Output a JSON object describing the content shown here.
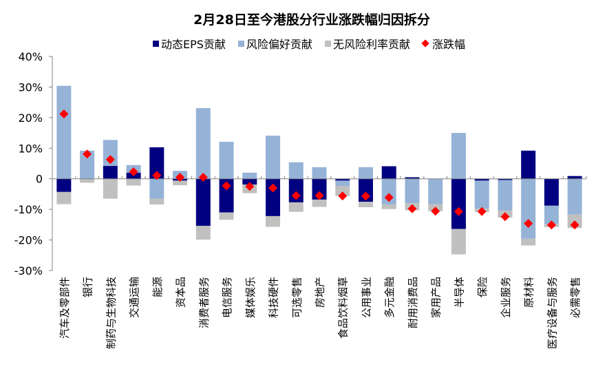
{
  "chart_data": {
    "type": "bar",
    "stacked": true,
    "title": "2月28日至今港股分行业涨跌幅归因拆分",
    "xlabel": "",
    "ylabel": "",
    "ylim": [
      -30,
      40
    ],
    "yticks": [
      "40%",
      "30%",
      "20%",
      "10%",
      "0",
      "-10%",
      "-20%",
      "-30%"
    ],
    "ytick_values": [
      40,
      30,
      20,
      10,
      0,
      -10,
      -20,
      -30
    ],
    "grid": false,
    "legend_position": "top",
    "categories": [
      "汽车及零部件",
      "银行",
      "制药与生物科技",
      "交通运输",
      "能源",
      "资本品",
      "消费者服务",
      "电信服务",
      "媒体娱乐",
      "科技硬件",
      "可选零售",
      "房地产",
      "食品饮料烟草",
      "公用事业",
      "多元金融",
      "耐用消费品",
      "家用产品",
      "半导体",
      "保险",
      "企业服务",
      "原材料",
      "医疗设备与服务",
      "必需零售"
    ],
    "series": [
      {
        "name": "动态EPS贡献",
        "kind": "bar",
        "color": "#000080",
        "values": [
          -4.3,
          0,
          4.2,
          2.0,
          10.3,
          -0.6,
          -15.4,
          -11.0,
          -1.9,
          -12.2,
          -7.7,
          -6.8,
          -0.6,
          -7.5,
          4.1,
          0.5,
          0,
          -16.4,
          -0.6,
          -0.4,
          9.2,
          -8.8,
          0.9
        ]
      },
      {
        "name": "风险偏好贡献",
        "kind": "bar",
        "color": "#95b3d7",
        "values": [
          30.4,
          9.2,
          8.5,
          2.5,
          -6.5,
          2.6,
          23.1,
          12.1,
          2.0,
          14.1,
          5.4,
          3.8,
          -1.8,
          3.8,
          -8.4,
          -8.0,
          -8.3,
          15.0,
          -9.2,
          -10.0,
          -19.6,
          -5.9,
          -11.7
        ]
      },
      {
        "name": "无风险利率贡献",
        "kind": "bar",
        "color": "#c0c0c0",
        "values": [
          -4.0,
          -1.3,
          -6.5,
          -2.2,
          -1.9,
          -1.5,
          -4.5,
          -2.4,
          -2.8,
          -3.5,
          -3.1,
          -2.4,
          -3.2,
          -1.8,
          -1.5,
          -2.3,
          -2.3,
          -8.3,
          -1.1,
          -2.3,
          -2.2,
          -1.1,
          -4.4
        ]
      },
      {
        "name": "涨跌幅",
        "kind": "marker",
        "color": "#ff0000",
        "values": [
          21.2,
          8.1,
          6.3,
          2.3,
          1.1,
          0.5,
          0.5,
          -2.3,
          -2.5,
          -3.0,
          -5.5,
          -5.5,
          -5.6,
          -5.7,
          -6.1,
          -9.8,
          -10.6,
          -10.7,
          -10.7,
          -12.4,
          -14.6,
          -15.1,
          -15.1
        ]
      }
    ]
  }
}
